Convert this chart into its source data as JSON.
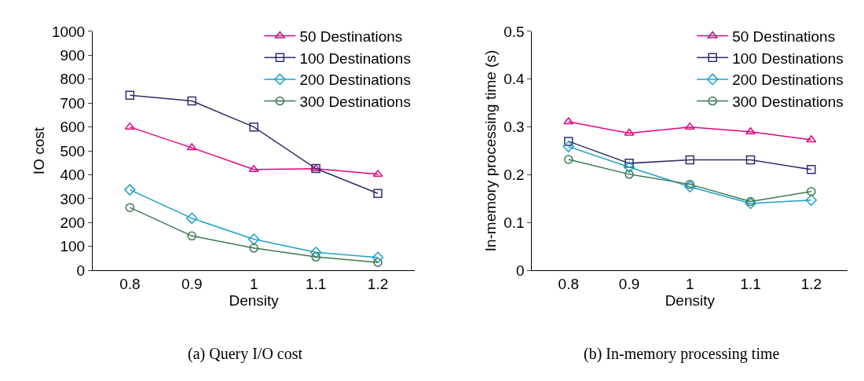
{
  "chart_data": [
    {
      "type": "line",
      "title": "(a) Query I/O cost",
      "xlabel": "Density",
      "ylabel": "IO cost",
      "categories": [
        "0.8",
        "0.9",
        "1",
        "1.1",
        "1.2"
      ],
      "ylim": [
        0,
        1000
      ],
      "yticks": [
        0,
        100,
        200,
        300,
        400,
        500,
        600,
        700,
        800,
        900,
        1000
      ],
      "legend": "top right",
      "series": [
        {
          "name": "50 Destinations",
          "color": "#e6007e",
          "marker": "triangle",
          "values": [
            600,
            513,
            422,
            425,
            402
          ]
        },
        {
          "name": "100 Destinations",
          "color": "#2e2e6e",
          "marker": "square",
          "values": [
            733,
            709,
            600,
            426,
            322
          ]
        },
        {
          "name": "200 Destinations",
          "color": "#1ea0c8",
          "marker": "diamond",
          "values": [
            337,
            218,
            130,
            75,
            54
          ]
        },
        {
          "name": "300 Destinations",
          "color": "#3c7850",
          "marker": "circle",
          "values": [
            263,
            144,
            93,
            56,
            33
          ]
        }
      ]
    },
    {
      "type": "line",
      "title": "(b) In-memory processing time",
      "xlabel": "Density",
      "ylabel": "In-memory processing time (s)",
      "categories": [
        "0.8",
        "0.9",
        "1",
        "1.1",
        "1.2"
      ],
      "ylim": [
        0,
        0.5
      ],
      "yticks": [
        0,
        0.1,
        0.2,
        0.3,
        0.4,
        0.5
      ],
      "legend": "top right",
      "series": [
        {
          "name": "50 Destinations",
          "color": "#e6007e",
          "marker": "triangle",
          "values": [
            0.311,
            0.287,
            0.3,
            0.29,
            0.273
          ]
        },
        {
          "name": "100 Destinations",
          "color": "#2e2e6e",
          "marker": "square",
          "values": [
            0.27,
            0.224,
            0.231,
            0.231,
            0.211
          ]
        },
        {
          "name": "200 Destinations",
          "color": "#1ea0c8",
          "marker": "diamond",
          "values": [
            0.259,
            0.216,
            0.175,
            0.14,
            0.147
          ]
        },
        {
          "name": "300 Destinations",
          "color": "#3c7850",
          "marker": "circle",
          "values": [
            0.232,
            0.201,
            0.18,
            0.144,
            0.165
          ]
        }
      ]
    }
  ]
}
